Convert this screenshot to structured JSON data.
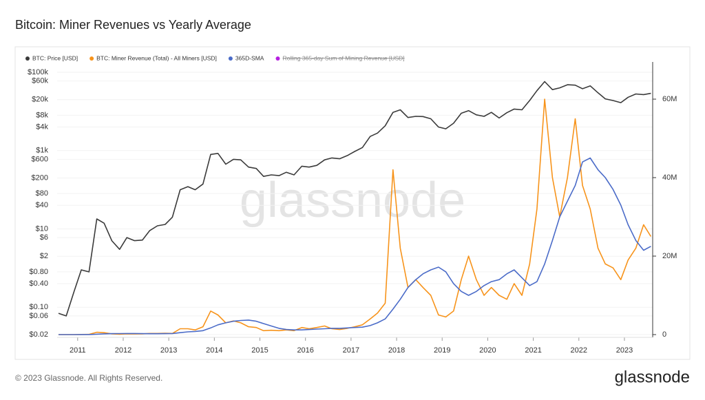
{
  "chart_data": {
    "type": "line",
    "title": "Bitcoin: Miner Revenues vs Yearly Average",
    "watermark": "glassnode",
    "ylog": true,
    "grid": true,
    "legend": "top-left",
    "x": [
      2010.58,
      2010.75,
      2010.92,
      2011.08,
      2011.25,
      2011.42,
      2011.58,
      2011.75,
      2011.92,
      2012.08,
      2012.25,
      2012.42,
      2012.58,
      2012.75,
      2012.92,
      2013.08,
      2013.25,
      2013.42,
      2013.58,
      2013.75,
      2013.92,
      2014.08,
      2014.25,
      2014.42,
      2014.58,
      2014.75,
      2014.92,
      2015.08,
      2015.25,
      2015.42,
      2015.58,
      2015.75,
      2015.92,
      2016.08,
      2016.25,
      2016.42,
      2016.58,
      2016.75,
      2016.92,
      2017.08,
      2017.25,
      2017.42,
      2017.58,
      2017.75,
      2017.92,
      2018.08,
      2018.25,
      2018.42,
      2018.58,
      2018.75,
      2018.92,
      2019.08,
      2019.25,
      2019.42,
      2019.58,
      2019.75,
      2019.92,
      2020.08,
      2020.25,
      2020.42,
      2020.58,
      2020.75,
      2020.92,
      2021.08,
      2021.25,
      2021.42,
      2021.58,
      2021.75,
      2021.92,
      2022.08,
      2022.25,
      2022.42,
      2022.58,
      2022.75,
      2022.92,
      2023.08,
      2023.25,
      2023.42,
      2023.58
    ],
    "xlim": [
      2010.55,
      2023.62
    ],
    "xticks": [
      2011,
      2012,
      2013,
      2014,
      2015,
      2016,
      2017,
      2018,
      2019,
      2020,
      2021,
      2022,
      2023
    ],
    "ylim": [
      0.02,
      150000
    ],
    "yticks": [
      {
        "value": 0.02,
        "label": "$0.02"
      },
      {
        "value": 0.06,
        "label": "$0.06"
      },
      {
        "value": 0.1,
        "label": "$0.10"
      },
      {
        "value": 0.4,
        "label": "$0.40"
      },
      {
        "value": 0.8,
        "label": "$0.80"
      },
      {
        "value": 2,
        "label": "$2"
      },
      {
        "value": 6,
        "label": "$6"
      },
      {
        "value": 10,
        "label": "$10"
      },
      {
        "value": 40,
        "label": "$40"
      },
      {
        "value": 80,
        "label": "$80"
      },
      {
        "value": 200,
        "label": "$200"
      },
      {
        "value": 600,
        "label": "$600"
      },
      {
        "value": 1000,
        "label": "$1k"
      },
      {
        "value": 4000,
        "label": "$4k"
      },
      {
        "value": 8000,
        "label": "$8k"
      },
      {
        "value": 20000,
        "label": "$20k"
      },
      {
        "value": 60000,
        "label": "$60k"
      },
      {
        "value": 100000,
        "label": "$100k"
      }
    ],
    "y2lim": [
      0,
      68600000
    ],
    "y2ticks": [
      0,
      {
        "value": 20000000,
        "label": "20M"
      },
      {
        "value": 40000000,
        "label": "40M"
      },
      {
        "value": 60000000,
        "label": "60M"
      }
    ],
    "series": [
      {
        "name": "BTC: Price [USD]",
        "color": "#3a3a3a",
        "values": [
          0.07,
          0.06,
          0.25,
          0.9,
          0.8,
          18,
          14,
          5,
          3,
          6,
          5,
          5.2,
          9,
          12,
          13,
          20,
          100,
          120,
          100,
          140,
          800,
          850,
          450,
          600,
          580,
          380,
          350,
          220,
          240,
          230,
          280,
          240,
          400,
          380,
          420,
          580,
          650,
          620,
          750,
          950,
          1200,
          2300,
          2800,
          4300,
          9500,
          11000,
          7000,
          7500,
          7400,
          6500,
          4000,
          3600,
          5000,
          9000,
          10500,
          8200,
          7500,
          9500,
          6800,
          9300,
          11500,
          11000,
          19000,
          34000,
          58000,
          36000,
          40000,
          48000,
          47000,
          38000,
          45000,
          30000,
          21000,
          19000,
          16800,
          23000,
          28000,
          27000,
          29000
        ]
      },
      {
        "name": "BTC: Miner Revenue (Total) - All Miners [USD]",
        "color": "#f7931a",
        "axis": "y2",
        "values": [
          2000,
          3000,
          5000,
          30000,
          50000,
          600000,
          500000,
          200000,
          100000,
          200000,
          150000,
          200000,
          300000,
          300000,
          350000,
          300000,
          1500000,
          1500000,
          1200000,
          2000000,
          6000000,
          5000000,
          3000000,
          3500000,
          3000000,
          2000000,
          1800000,
          1000000,
          1100000,
          1000000,
          1200000,
          1000000,
          1800000,
          1500000,
          1800000,
          2200000,
          1500000,
          1300000,
          1600000,
          2000000,
          2500000,
          4000000,
          5500000,
          8000000,
          42000000,
          22000000,
          12000000,
          14000000,
          12000000,
          10000000,
          5000000,
          4500000,
          6000000,
          14000000,
          20000000,
          14000000,
          10000000,
          12000000,
          10000000,
          9000000,
          13000000,
          10000000,
          18000000,
          32000000,
          60000000,
          40000000,
          30000000,
          40000000,
          55000000,
          38000000,
          32000000,
          22000000,
          18000000,
          17000000,
          14000000,
          19000000,
          22000000,
          28000000,
          25000000
        ]
      },
      {
        "name": "365D-SMA",
        "color": "#4a6bc8",
        "axis": "y2",
        "values": [
          2000,
          2000,
          3000,
          10000,
          20000,
          100000,
          200000,
          250000,
          270000,
          280000,
          280000,
          250000,
          230000,
          230000,
          250000,
          270000,
          500000,
          700000,
          800000,
          1000000,
          1700000,
          2500000,
          3000000,
          3400000,
          3600000,
          3700000,
          3400000,
          2800000,
          2200000,
          1600000,
          1300000,
          1200000,
          1200000,
          1300000,
          1400000,
          1500000,
          1600000,
          1600000,
          1700000,
          1800000,
          1900000,
          2300000,
          3000000,
          4000000,
          6500000,
          9000000,
          12000000,
          14000000,
          15500000,
          16500000,
          17200000,
          16000000,
          13000000,
          11000000,
          10000000,
          11000000,
          12500000,
          13500000,
          14000000,
          15500000,
          16500000,
          14500000,
          12500000,
          13500000,
          18000000,
          24000000,
          30000000,
          34000000,
          38000000,
          44000000,
          45000000,
          42000000,
          40000000,
          37000000,
          33000000,
          28000000,
          24000000,
          21500000,
          22500000
        ]
      },
      {
        "name": "Rolling 365-day Sum of Mining Revenue [USD]",
        "color": "#b620e0",
        "axis": "y2",
        "hidden": true
      }
    ]
  },
  "footer": {
    "copyright": "© 2023 Glassnode. All Rights Reserved.",
    "brand": "glassnode"
  }
}
